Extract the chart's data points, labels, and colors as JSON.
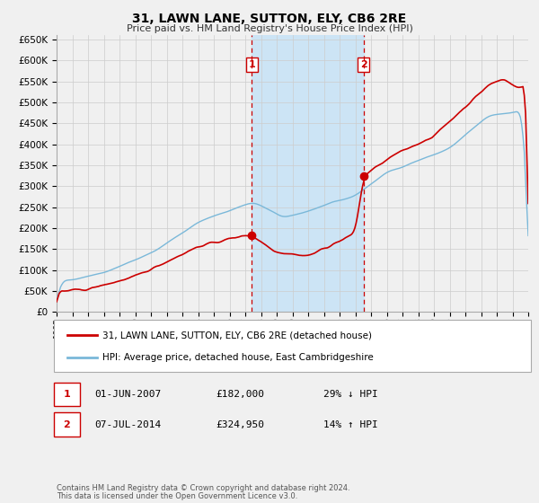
{
  "title": "31, LAWN LANE, SUTTON, ELY, CB6 2RE",
  "subtitle": "Price paid vs. HM Land Registry's House Price Index (HPI)",
  "ylim": [
    0,
    660000
  ],
  "year_start": 1995,
  "year_end": 2025,
  "hpi_color": "#7ab8d9",
  "price_color": "#cc0000",
  "sale1_date_num": 2007.42,
  "sale1_price": 182000,
  "sale1_label": "1",
  "sale1_text": "01-JUN-2007",
  "sale1_pct": "29% ↓ HPI",
  "sale2_date_num": 2014.52,
  "sale2_price": 324950,
  "sale2_label": "2",
  "sale2_text": "07-JUL-2014",
  "sale2_pct": "14% ↑ HPI",
  "legend_line1": "31, LAWN LANE, SUTTON, ELY, CB6 2RE (detached house)",
  "legend_line2": "HPI: Average price, detached house, East Cambridgeshire",
  "footer1": "Contains HM Land Registry data © Crown copyright and database right 2024.",
  "footer2": "This data is licensed under the Open Government Licence v3.0.",
  "bg_fill_color": "#cce4f5",
  "grid_color": "#cccccc",
  "background_color": "#f0f0f0"
}
